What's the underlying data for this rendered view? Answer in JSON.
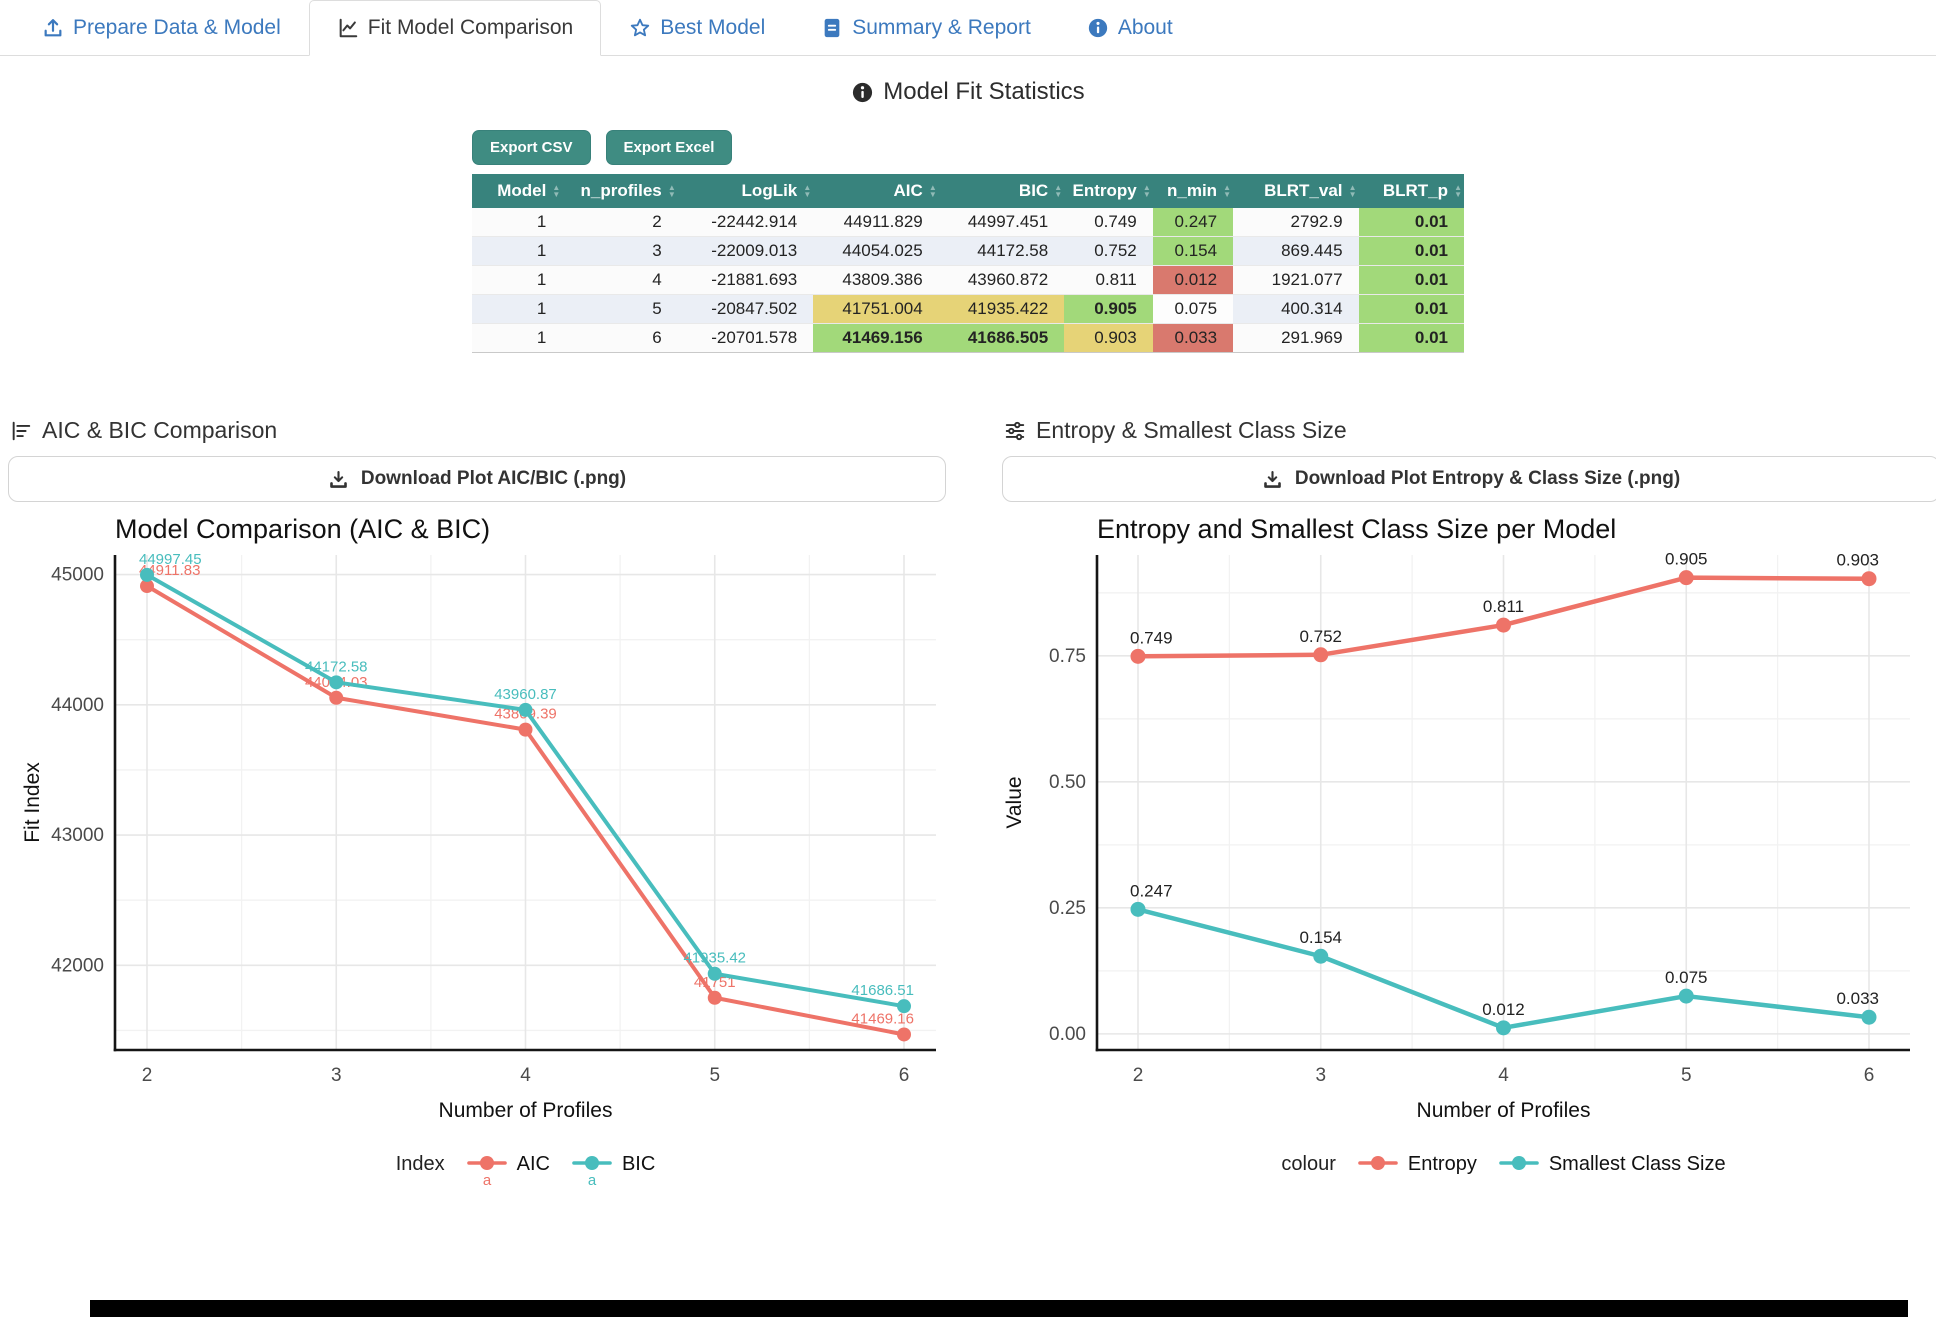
{
  "tabs": [
    {
      "label": "Prepare Data & Model",
      "icon": "upload-icon",
      "active": false
    },
    {
      "label": "Fit Model Comparison",
      "icon": "chart-line-icon",
      "active": true
    },
    {
      "label": "Best Model",
      "icon": "star-icon",
      "active": false
    },
    {
      "label": "Summary & Report",
      "icon": "file-text-icon",
      "active": false
    },
    {
      "label": "About",
      "icon": "info-icon",
      "active": false
    }
  ],
  "stats_section": {
    "title": "Model Fit Statistics",
    "export_csv_label": "Export CSV",
    "export_excel_label": "Export Excel",
    "columns": [
      "Model",
      "n_profiles",
      "LogLik",
      "AIC",
      "BIC",
      "Entropy",
      "n_min",
      "BLRT_val",
      "BLRT_p"
    ],
    "rows": [
      {
        "cells": [
          "1",
          "2",
          "-22442.914",
          "44911.829",
          "44997.451",
          "0.749",
          "0.247",
          "2792.9",
          "0.01"
        ],
        "highlights": {
          "n_min": "c-green",
          "BLRT_p": "c-green c-bold"
        }
      },
      {
        "cells": [
          "1",
          "3",
          "-22009.013",
          "44054.025",
          "44172.58",
          "0.752",
          "0.154",
          "869.445",
          "0.01"
        ],
        "highlights": {
          "n_min": "c-green",
          "BLRT_p": "c-green c-bold"
        }
      },
      {
        "cells": [
          "1",
          "4",
          "-21881.693",
          "43809.386",
          "43960.872",
          "0.811",
          "0.012",
          "1921.077",
          "0.01"
        ],
        "highlights": {
          "n_min": "c-red",
          "BLRT_p": "c-green c-bold"
        }
      },
      {
        "cells": [
          "1",
          "5",
          "-20847.502",
          "41751.004",
          "41935.422",
          "0.905",
          "0.075",
          "400.314",
          "0.01"
        ],
        "highlights": {
          "AIC": "c-yellow",
          "BIC": "c-yellow",
          "Entropy": "c-green c-bold",
          "n_min": "c-white",
          "BLRT_p": "c-green c-bold"
        }
      },
      {
        "cells": [
          "1",
          "6",
          "-20701.578",
          "41469.156",
          "41686.505",
          "0.903",
          "0.033",
          "291.969",
          "0.01"
        ],
        "highlights": {
          "AIC": "c-green c-bold",
          "BIC": "c-green c-bold",
          "Entropy": "c-yellow",
          "n_min": "c-red",
          "BLRT_p": "c-green c-bold"
        }
      }
    ]
  },
  "left_panel": {
    "heading": "AIC & BIC Comparison",
    "heading_icon": "bars-icon",
    "download_label": "Download Plot AIC/BIC (.png)"
  },
  "right_panel": {
    "heading": "Entropy & Smallest Class Size",
    "heading_icon": "sliders-icon",
    "download_label": "Download Plot Entropy & Class Size (.png)"
  },
  "colors": {
    "accent_teal": "#38837D",
    "tab_blue": "#3C79BE",
    "highlight_green": "#A2D97A",
    "highlight_red": "#D9796E",
    "highlight_yellow": "#E6D377",
    "series_red": "#EE7368",
    "series_teal": "#48BDBD"
  },
  "chart_data": [
    {
      "id": "aicbic",
      "type": "line",
      "title": "Model Comparison (AIC & BIC)",
      "xlabel": "Number of Profiles",
      "ylabel": "Fit Index",
      "x": [
        2,
        3,
        4,
        5,
        6
      ],
      "xtick_labels": [
        "2",
        "3",
        "4",
        "5",
        "6"
      ],
      "ylim": [
        41350,
        45150
      ],
      "ytick_vals": [
        42000,
        43000,
        44000,
        45000
      ],
      "ytick_labels": [
        "42000",
        "43000",
        "44000",
        "45000"
      ],
      "grid": true,
      "legend_position": "bottom",
      "legend_title": "Index",
      "legend_key_char": "a",
      "label_color": "series",
      "series": [
        {
          "name": "AIC",
          "color": "#EE7368",
          "values": [
            44911.829,
            44054.025,
            43809.386,
            41751.004,
            41469.156
          ],
          "point_labels": [
            "44911.83",
            "44054.03",
            "43809.39",
            "41751",
            "41469.16"
          ]
        },
        {
          "name": "BIC",
          "color": "#48BDBD",
          "values": [
            44997.451,
            44172.58,
            43960.872,
            41935.422,
            41686.505
          ],
          "point_labels": [
            "44997.45",
            "44172.58",
            "43960.87",
            "41935.42",
            "41686.51"
          ]
        }
      ]
    },
    {
      "id": "entropy",
      "type": "line",
      "title": "Entropy and Smallest Class Size per Model",
      "xlabel": "Number of Profiles",
      "ylabel": "Value",
      "x": [
        2,
        3,
        4,
        5,
        6
      ],
      "xtick_labels": [
        "2",
        "3",
        "4",
        "5",
        "6"
      ],
      "ylim": [
        -0.032,
        0.95
      ],
      "ytick_vals": [
        0,
        0.25,
        0.5,
        0.75
      ],
      "ytick_labels": [
        "0.00",
        "0.25",
        "0.50",
        "0.75"
      ],
      "grid": true,
      "legend_position": "bottom",
      "legend_title": "colour",
      "label_color": "#222222",
      "series": [
        {
          "name": "Entropy",
          "color": "#EE7368",
          "values": [
            0.749,
            0.752,
            0.811,
            0.905,
            0.903
          ],
          "point_labels": [
            "0.749",
            "0.752",
            "0.811",
            "0.905",
            "0.903"
          ]
        },
        {
          "name": "Smallest Class Size",
          "color": "#48BDBD",
          "values": [
            0.247,
            0.154,
            0.012,
            0.075,
            0.033
          ],
          "point_labels": [
            "0.247",
            "0.154",
            "0.012",
            "0.075",
            "0.033"
          ]
        }
      ]
    }
  ]
}
